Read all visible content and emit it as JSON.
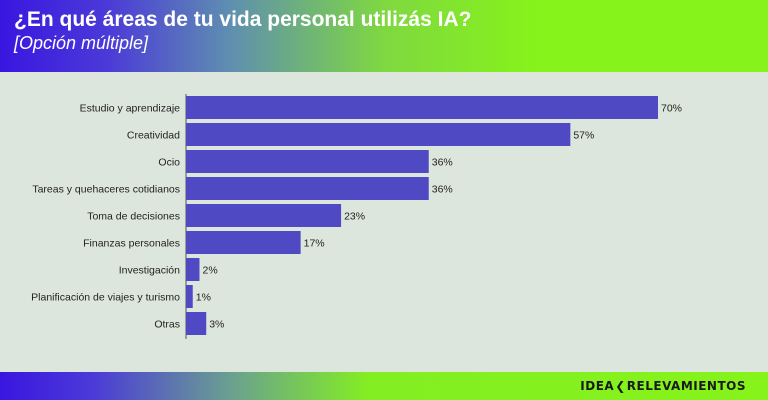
{
  "header": {
    "title": "¿En qué áreas de tu vida personal utilizás IA?",
    "subtitle": "[Opción múltiple]"
  },
  "brand": {
    "left": "IDEA",
    "arrow": "❮",
    "right": "RELEVAMIENTOS"
  },
  "colors": {
    "bar": "#5049c4",
    "panel": "#dde6dd"
  },
  "chart_data": {
    "type": "bar",
    "orientation": "horizontal",
    "categories": [
      "Estudio y aprendizaje",
      "Creatividad",
      "Ocio",
      "Tareas y quehaceres cotidianos",
      "Toma de decisiones",
      "Finanzas personales",
      "Investigación",
      "Planificación de viajes y turismo",
      "Otras"
    ],
    "values": [
      70,
      57,
      36,
      36,
      23,
      17,
      2,
      1,
      3
    ],
    "value_labels": [
      "70%",
      "57%",
      "36%",
      "36%",
      "23%",
      "17%",
      "2%",
      "1%",
      "3%"
    ],
    "unit": "%",
    "xlim": [
      0,
      70
    ],
    "grid": false,
    "legend": "none"
  }
}
